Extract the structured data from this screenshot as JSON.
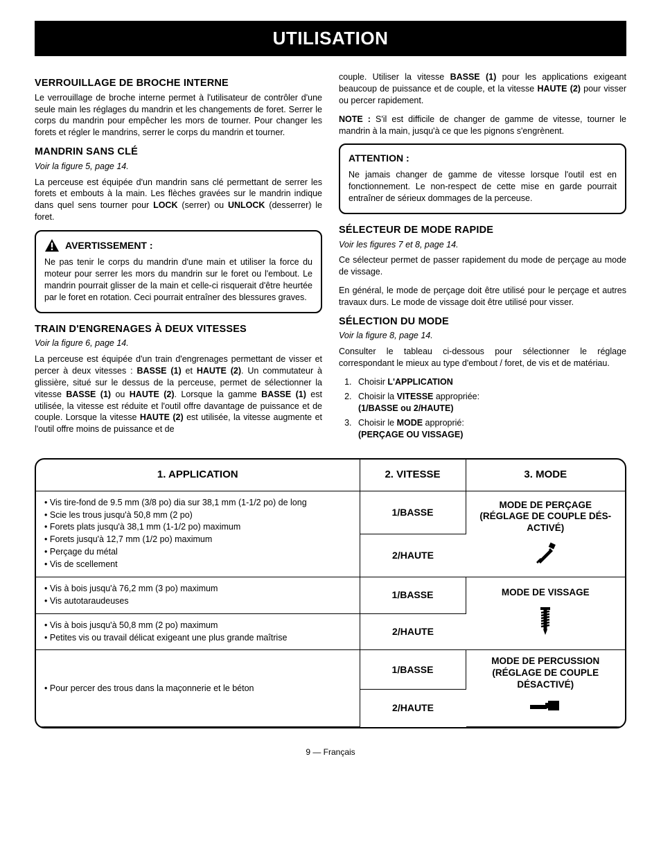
{
  "banner": "UTILISATION",
  "left": {
    "h1": "VERROUILLAGE DE BROCHE INTERNE",
    "p1": "Le verrouillage de broche interne permet à l'utilisateur de contrôler d'une seule main les réglages du mandrin et les changements de foret. Serrer le corps du mandrin pour empêcher les mors de tourner. Pour changer les forets et régler le mandrins, serrer le corps du mandrin et tourner.",
    "h2": "MANDRIN SANS CLÉ",
    "fig2": "Voir la figure 5, page 14.",
    "p2a": "La perceuse est équipée d'un mandrin sans clé permettant de serrer les forets et embouts à la main. Les flèches gravées sur le mandrin indique dans quel sens tourner pour ",
    "p2b": " (serrer) ou ",
    "p2c": " (desserrer) le foret.",
    "lock": "LOCK",
    "unlock": "UNLOCK",
    "warn_title": "AVERTISSEMENT :",
    "warn_body": "Ne pas tenir le corps du mandrin d'une main et utiliser la force du moteur pour serrer les mors du mandrin sur le foret ou l'embout. Le mandrin pourrait glisser de la main et celle-ci risquerait d'être heurtée par le foret en rotation. Ceci pourrait entraîner des blessures graves.",
    "h3": "TRAIN D'ENGRENAGES À DEUX VITESSES",
    "fig3": "Voir la figure 6, page 14.",
    "p3": "La perceuse est équipée d'un train d'engrenages permettant de visser et percer à deux vitesses : <strong>BASSE (1)</strong> et <strong>HAUTE (2)</strong>. Un commutateur à glissière, situé sur le dessus de la perceuse, permet de sélectionner la vitesse <strong>BASSE (1)</strong> ou <strong>HAUTE (2)</strong>. Lorsque la gamme <strong>BASSE (1)</strong> est utilisée, la vitesse est réduite et l'outil offre davantage de puissance et de couple. Lorsque la vitesse <strong>HAUTE (2)</strong> est utilisée, la vitesse augmente et l'outil offre moins de puissance et de"
  },
  "right": {
    "p_top": "couple. Utiliser la vitesse <strong>BASSE (1)</strong> pour les applications exigeant beaucoup de puissance et de couple, et la vitesse <strong>HAUTE (2)</strong> pour visser ou percer rapidement.",
    "note_label": "NOTE :",
    "note_body": " S'il est difficile de changer de gamme de vitesse, tourner le mandrin à la main, jusqu'à ce que les pignons s'engrènent.",
    "caution_title": "ATTENTION :",
    "caution_body": "Ne jamais changer de gamme de vitesse lorsque l'outil est en fonctionnement. Le non-respect de cette mise en garde pourrait entraîner de sérieux dommages de la perceuse.",
    "h1": "SÉLECTEUR DE MODE RAPIDE",
    "fig1": "Voir les figures 7 et 8, page 14.",
    "p1": "Ce sélecteur permet de passer rapidement du mode de perçage au mode de vissage.",
    "p2": "En général, le mode de perçage doit être utilisé pour le perçage et autres travaux durs. Le mode de vissage doit être utilisé pour visser.",
    "h2": "SÉLECTION DU MODE",
    "fig2": "Voir la figure 8, page 14.",
    "p3": "Consulter le tableau ci-dessous pour sélectionner le réglage correspondant le mieux au type d'embout / foret, de vis et de matériau.",
    "steps": [
      {
        "pre": "Choisir ",
        "b": "L'APPLICATION",
        "post": ""
      },
      {
        "pre": "Choisir la ",
        "b": "VITESSE",
        "post": " appropriée:",
        "sub": "(1/BASSE ou 2/HAUTE)"
      },
      {
        "pre": "Choisir le ",
        "b": "MODE",
        "post": " approprié:",
        "sub": "(PERÇAGE OU VISSAGE)"
      }
    ]
  },
  "table": {
    "headers": [
      "1. APPLICATION",
      "2. VITESSE",
      "3. MODE"
    ],
    "speed_low": "1/BASSE",
    "speed_high": "2/HAUTE",
    "app1": [
      "Vis tire-fond de 9.5 mm (3/8 po) dia sur 38,1 mm (1-1/2 po) de long",
      "Scie les trous jusqu'à 50,8 mm (2 po)",
      "Forets plats jusqu'à 38,1 mm (1-1/2 po) maximum",
      "Forets jusqu'à 12,7 mm (1/2 po) maximum",
      "Perçage du métal",
      "Vis de scellement"
    ],
    "mode1": "MODE DE PERÇAGE (RÉGLAGE DE COUPLE DÉS­ACTIVÉ)",
    "app2": [
      "Vis à bois jusqu'à 76,2 mm (3 po) maximum",
      "Vis autotaraudeuses"
    ],
    "app3": [
      "Vis à bois jusqu'à 50,8 mm (2 po) maximum",
      "Petites vis ou travail délicat exigeant une plus grande maîtrise"
    ],
    "mode2": "MODE DE VISSAGE",
    "app4": "Pour percer des trous dans la maçonnerie et le béton",
    "mode3": "MODE DE PERCUSSION (RÉGLAGE DE COUPLE DÉSACTIVÉ)"
  },
  "footer": "9 — Français"
}
